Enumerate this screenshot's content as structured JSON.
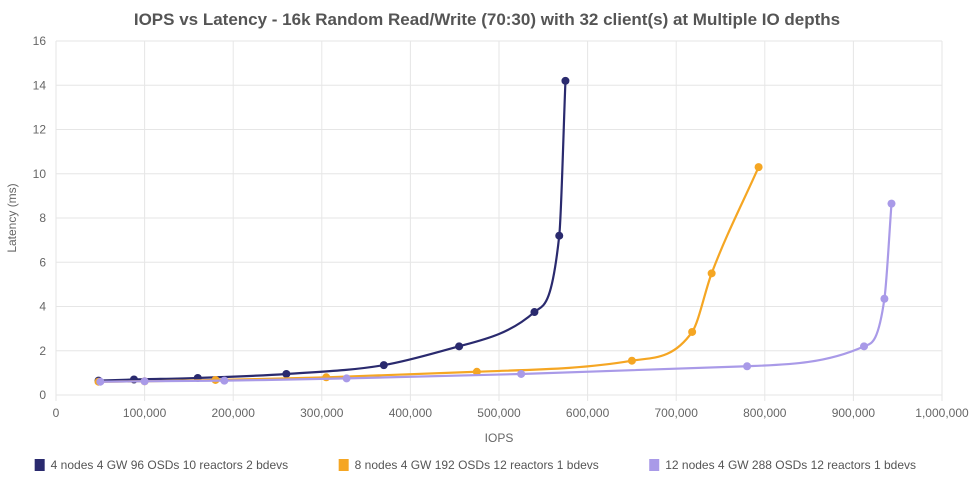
{
  "chart_data": {
    "type": "line",
    "title": "IOPS vs Latency - 16k Random Read/Write (70:30) with 32 client(s) at Multiple IO depths",
    "xlabel": "IOPS",
    "ylabel": "Latency (ms)",
    "xlim": [
      0,
      1000000
    ],
    "ylim": [
      0,
      16
    ],
    "xticks": [
      0,
      100000,
      200000,
      300000,
      400000,
      500000,
      600000,
      700000,
      800000,
      900000,
      1000000
    ],
    "xtick_labels": [
      "0",
      "100,000",
      "200,000",
      "300,000",
      "400,000",
      "500,000",
      "600,000",
      "700,000",
      "800,000",
      "900,000",
      "1,000,000"
    ],
    "yticks": [
      0,
      2,
      4,
      6,
      8,
      10,
      12,
      14,
      16
    ],
    "ytick_labels": [
      "0",
      "2",
      "4",
      "6",
      "8",
      "10",
      "12",
      "14",
      "16"
    ],
    "grid": true,
    "legend_position": "bottom",
    "series": [
      {
        "name": "4 nodes 4 GW 96 OSDs 10 reactors 2 bdevs",
        "color": "#2a2a6e",
        "points": [
          [
            48000,
            0.65
          ],
          [
            88000,
            0.7
          ],
          [
            160000,
            0.77
          ],
          [
            260000,
            0.95
          ],
          [
            370000,
            1.35
          ],
          [
            455000,
            2.2
          ],
          [
            540000,
            3.75
          ],
          [
            568000,
            7.2
          ],
          [
            575000,
            14.2
          ]
        ]
      },
      {
        "name": "8 nodes 4 GW 192 OSDs 12 reactors 1 bdevs",
        "color": "#f5a623",
        "points": [
          [
            48000,
            0.6
          ],
          [
            100000,
            0.62
          ],
          [
            180000,
            0.68
          ],
          [
            305000,
            0.8
          ],
          [
            475000,
            1.05
          ],
          [
            650000,
            1.55
          ],
          [
            718000,
            2.85
          ],
          [
            740000,
            5.5
          ],
          [
            793000,
            10.3
          ]
        ]
      },
      {
        "name": "12 nodes 4 GW 288 OSDs 12 reactors 1 bdevs",
        "color": "#a99ae8",
        "points": [
          [
            50000,
            0.6
          ],
          [
            100000,
            0.62
          ],
          [
            190000,
            0.65
          ],
          [
            328000,
            0.75
          ],
          [
            525000,
            0.95
          ],
          [
            780000,
            1.3
          ],
          [
            912000,
            2.2
          ],
          [
            935000,
            4.35
          ],
          [
            943000,
            8.65
          ]
        ]
      }
    ]
  }
}
